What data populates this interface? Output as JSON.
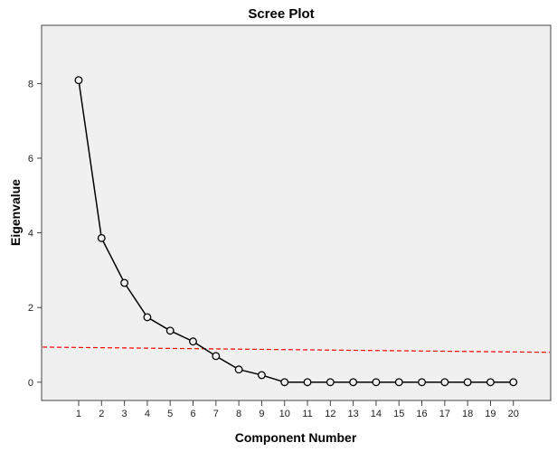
{
  "chart_data": {
    "type": "line",
    "title": "Scree Plot",
    "xlabel": "Component Number",
    "ylabel": "Eigenvalue",
    "x": [
      1,
      2,
      3,
      4,
      5,
      6,
      7,
      8,
      9,
      10,
      11,
      12,
      13,
      14,
      15,
      16,
      17,
      18,
      19,
      20
    ],
    "series": [
      {
        "name": "Eigenvalue",
        "values": [
          8.09,
          3.86,
          2.66,
          1.74,
          1.38,
          1.09,
          0.7,
          0.34,
          0.19,
          0,
          0,
          0,
          0,
          0,
          0,
          0,
          0,
          0,
          0,
          0
        ],
        "color": "#000000",
        "marker": "circle"
      }
    ],
    "reference_line": {
      "style": "dashed",
      "color": "#ff0000",
      "x": [
        -0.62,
        21.63
      ],
      "y": [
        0.94,
        0.8
      ]
    },
    "xticks": [
      "1",
      "2",
      "3",
      "4",
      "5",
      "6",
      "7",
      "8",
      "9",
      "10",
      "11",
      "12",
      "13",
      "14",
      "15",
      "16",
      "17",
      "18",
      "19",
      "20"
    ],
    "yticks": [
      "0",
      "2",
      "4",
      "6",
      "8"
    ],
    "xlim": [
      -0.62,
      21.63
    ],
    "ylim": [
      -0.49,
      9.56
    ],
    "grid": false,
    "plot_background": "#f0f0f0"
  }
}
